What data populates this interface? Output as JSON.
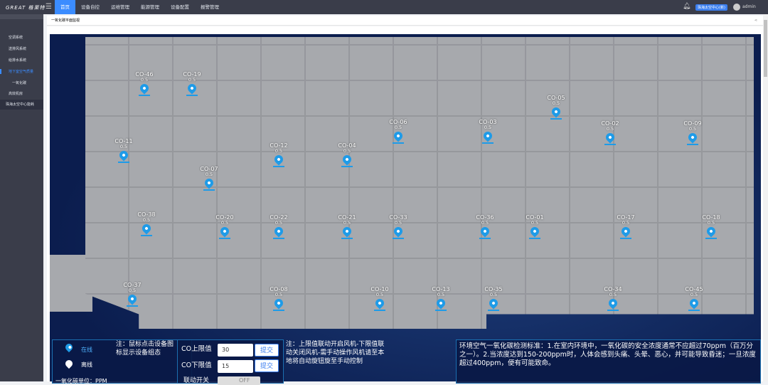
{
  "header": {
    "logo": "GREAT 格莱特",
    "nav": [
      "首页",
      "设备自控",
      "运维管理",
      "能源管理",
      "设备配置",
      "报警管理"
    ],
    "active_nav": 0,
    "site_badge": "珠海太空中心(新)",
    "user": "admin"
  },
  "sidebar": {
    "items": [
      {
        "label": "空调系统"
      },
      {
        "label": "送排风系统"
      },
      {
        "label": "给排水系统"
      },
      {
        "label": "地下室空气质量"
      },
      {
        "label": "一氧化碳"
      },
      {
        "label": "高效机房"
      },
      {
        "label": "珠海太空中心能耗"
      }
    ]
  },
  "breadcrumb": "一氧化碳平面监视",
  "sensors": [
    {
      "id": "CO-46",
      "value": "0.5"
    },
    {
      "id": "CO-19",
      "value": "0.5"
    },
    {
      "id": "CO-05",
      "value": "0.5"
    },
    {
      "id": "CO-06",
      "value": "0.5"
    },
    {
      "id": "CO-03",
      "value": "0.5"
    },
    {
      "id": "CO-02",
      "value": "0.5"
    },
    {
      "id": "CO-09",
      "value": "0.5"
    },
    {
      "id": "CO-11",
      "value": "0.5"
    },
    {
      "id": "CO-12",
      "value": "0.5"
    },
    {
      "id": "CO-04",
      "value": "0.5"
    },
    {
      "id": "CO-07",
      "value": "0.5"
    },
    {
      "id": "CO-38",
      "value": "0.5"
    },
    {
      "id": "CO-20",
      "value": "0.5"
    },
    {
      "id": "CO-22",
      "value": "0.5"
    },
    {
      "id": "CO-21",
      "value": "0.5"
    },
    {
      "id": "CO-33",
      "value": "0.5"
    },
    {
      "id": "CO-36",
      "value": "0.5"
    },
    {
      "id": "CO-01",
      "value": "0.5"
    },
    {
      "id": "CO-17",
      "value": "0.5"
    },
    {
      "id": "CO-18",
      "value": "0.5"
    },
    {
      "id": "CO-37",
      "value": "0.5"
    },
    {
      "id": "CO-08",
      "value": "0.5"
    },
    {
      "id": "CO-10",
      "value": "0.5"
    },
    {
      "id": "CO-13",
      "value": "0.5"
    },
    {
      "id": "CO-35",
      "value": "0.5"
    },
    {
      "id": "CO-34",
      "value": "0.5"
    },
    {
      "id": "CO-45",
      "value": "0.5"
    }
  ],
  "legend": {
    "online": "在线",
    "offline": "离线",
    "unit": "一氧化碳单位：PPM",
    "online_color": "#1e9be8",
    "offline_color": "#ffffff"
  },
  "note1": "注：鼠标点击设备图标显示设备组态",
  "controls": {
    "upper_label": "CO上限值",
    "upper_value": "30",
    "lower_label": "CO下限值",
    "lower_value": "15",
    "submit": "提交",
    "link_label": "联动开关",
    "link_state": "OFF"
  },
  "note2": "注：上限值联动开启风机-下限值联动关闭风机-需手动操作风机请至本地将自动旋钮旋至手动控制",
  "standard": "环境空气一氧化碳检测标准：1.在室内环境中，一氧化碳的安全浓度通常不应超过70ppm（百万分之一）。2.当浓度达到150-200ppm时，人体会感到头痛、头晕、恶心，并可能导致昏迷；一旦浓度超过400ppm，便有可能致命。"
}
